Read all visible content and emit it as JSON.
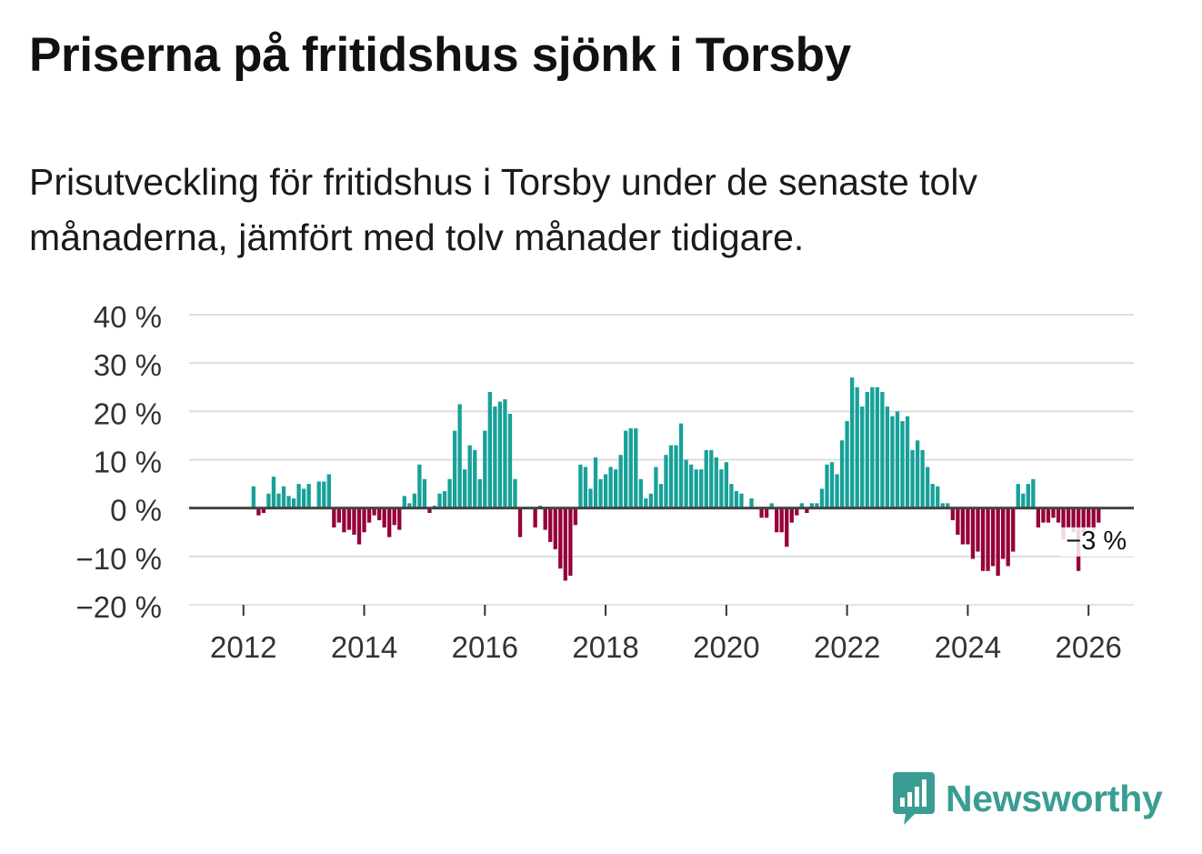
{
  "header": {
    "title": "Priserna på fritidshus sjönk i Torsby",
    "subtitle": "Prisutveckling för fritidshus i Torsby under de senaste tolv månaderna, jämfört med tolv månader tidigare."
  },
  "brand": {
    "name": "Newsworthy",
    "icon": "newsworthy-logo-icon"
  },
  "colors": {
    "positive": "#17a199",
    "negative": "#96003a",
    "grid": "#dddddd",
    "zero_line": "#444444",
    "brand": "#3a9d93"
  },
  "chart_data": {
    "type": "bar",
    "title": "Priserna på fritidshus sjönk i Torsby",
    "xlabel": "",
    "ylabel": "",
    "ylim": [
      -20,
      40
    ],
    "xlim": [
      2011.1,
      2026.75
    ],
    "yticks": [
      -20,
      -10,
      0,
      10,
      20,
      30,
      40
    ],
    "ytick_labels": [
      "−20 %",
      "−10 %",
      "0 %",
      "10 %",
      "20 %",
      "30 %",
      "40 %"
    ],
    "xticks": [
      2012,
      2014,
      2016,
      2018,
      2020,
      2022,
      2024,
      2026
    ],
    "xtick_labels": [
      "2012",
      "2014",
      "2016",
      "2018",
      "2020",
      "2022",
      "2024",
      "2026"
    ],
    "start": "2012-01",
    "frequency": "monthly",
    "values": [
      0,
      0,
      4.5,
      -1.5,
      -1,
      3,
      6.5,
      3,
      4.5,
      2.5,
      2,
      5,
      4,
      5,
      0,
      5.5,
      5.5,
      7,
      -4,
      -3,
      -5,
      -4.5,
      -5.5,
      -7.5,
      -5,
      -3,
      -1.5,
      -2.5,
      -4,
      -6,
      -3.5,
      -4.5,
      2.5,
      1,
      3,
      9,
      6,
      -1,
      0.5,
      3,
      3.5,
      6,
      16,
      21.5,
      8,
      13,
      12,
      6,
      16,
      24,
      21,
      22,
      22.5,
      19.5,
      6,
      -6,
      0,
      0,
      -4,
      0.5,
      -4.5,
      -7,
      -8.5,
      -12.5,
      -15,
      -14,
      -3.5,
      9,
      8.5,
      4,
      10.5,
      6,
      7,
      8.5,
      8,
      11,
      16,
      16.5,
      16.5,
      6,
      2,
      3,
      8.5,
      5,
      11,
      13,
      13,
      17.5,
      10,
      9,
      8,
      8,
      12,
      12,
      10.5,
      8,
      9.5,
      5,
      3.5,
      3,
      0,
      2,
      0,
      -2,
      -2,
      1,
      -5,
      -5,
      -8,
      -3,
      -1.5,
      1,
      -1,
      1,
      1,
      4,
      9,
      9.5,
      7,
      14,
      18,
      27,
      25,
      21,
      24,
      25,
      25,
      24,
      21,
      19,
      20,
      18,
      19,
      12,
      14,
      12,
      8.5,
      5,
      4.5,
      1,
      1,
      -2.5,
      -5.5,
      -7.5,
      -7.5,
      -10.5,
      -9,
      -13,
      -13,
      -12,
      -14,
      -10.5,
      -12,
      -9,
      5,
      3,
      5,
      6,
      -4,
      -3,
      -3,
      -2,
      -3,
      -6.5,
      -4,
      -5,
      -13,
      -5,
      -4,
      -4.5,
      -3
    ],
    "annotations": [
      {
        "label": "−3 %",
        "anchor": "last"
      }
    ]
  }
}
